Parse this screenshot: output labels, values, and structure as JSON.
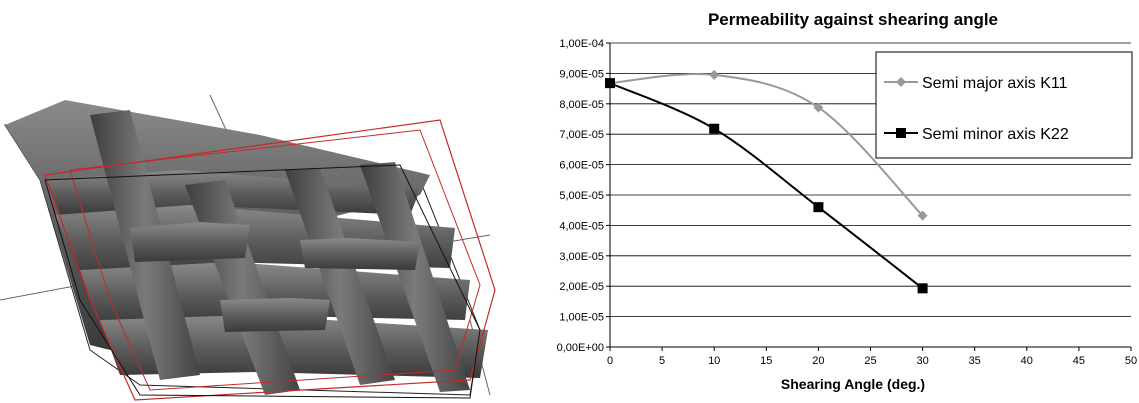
{
  "figure": {
    "description_icon": "woven-fabric-3d-render"
  },
  "chart_data": {
    "type": "line",
    "title": "Permeability against shearing angle",
    "xlabel": "Shearing Angle (deg.)",
    "ylabel": "",
    "xlim": [
      0,
      50
    ],
    "ylim": [
      0,
      0.0001
    ],
    "x_ticks": [
      "0",
      "5",
      "10",
      "15",
      "20",
      "25",
      "30",
      "35",
      "40",
      "45",
      "50"
    ],
    "y_ticks": [
      "0,00E+00",
      "1,00E-05",
      "2,00E-05",
      "3,00E-05",
      "4,00E-05",
      "5,00E-05",
      "6,00E-05",
      "7,00E-05",
      "8,00E-05",
      "9,00E-05",
      "1,00E-04"
    ],
    "grid": "horizontal",
    "legend_position": "top-right",
    "series": [
      {
        "name": "Semi major axis K11",
        "color": "#999999",
        "marker": "diamond",
        "x": [
          0,
          10,
          20,
          30
        ],
        "values": [
          8.68e-05,
          8.95e-05,
          7.88e-05,
          4.32e-05
        ]
      },
      {
        "name": "Semi minor axis K22",
        "color": "#000000",
        "marker": "square",
        "x": [
          0,
          10,
          20,
          30
        ],
        "values": [
          8.68e-05,
          7.18e-05,
          4.6e-05,
          1.93e-05
        ]
      }
    ]
  }
}
